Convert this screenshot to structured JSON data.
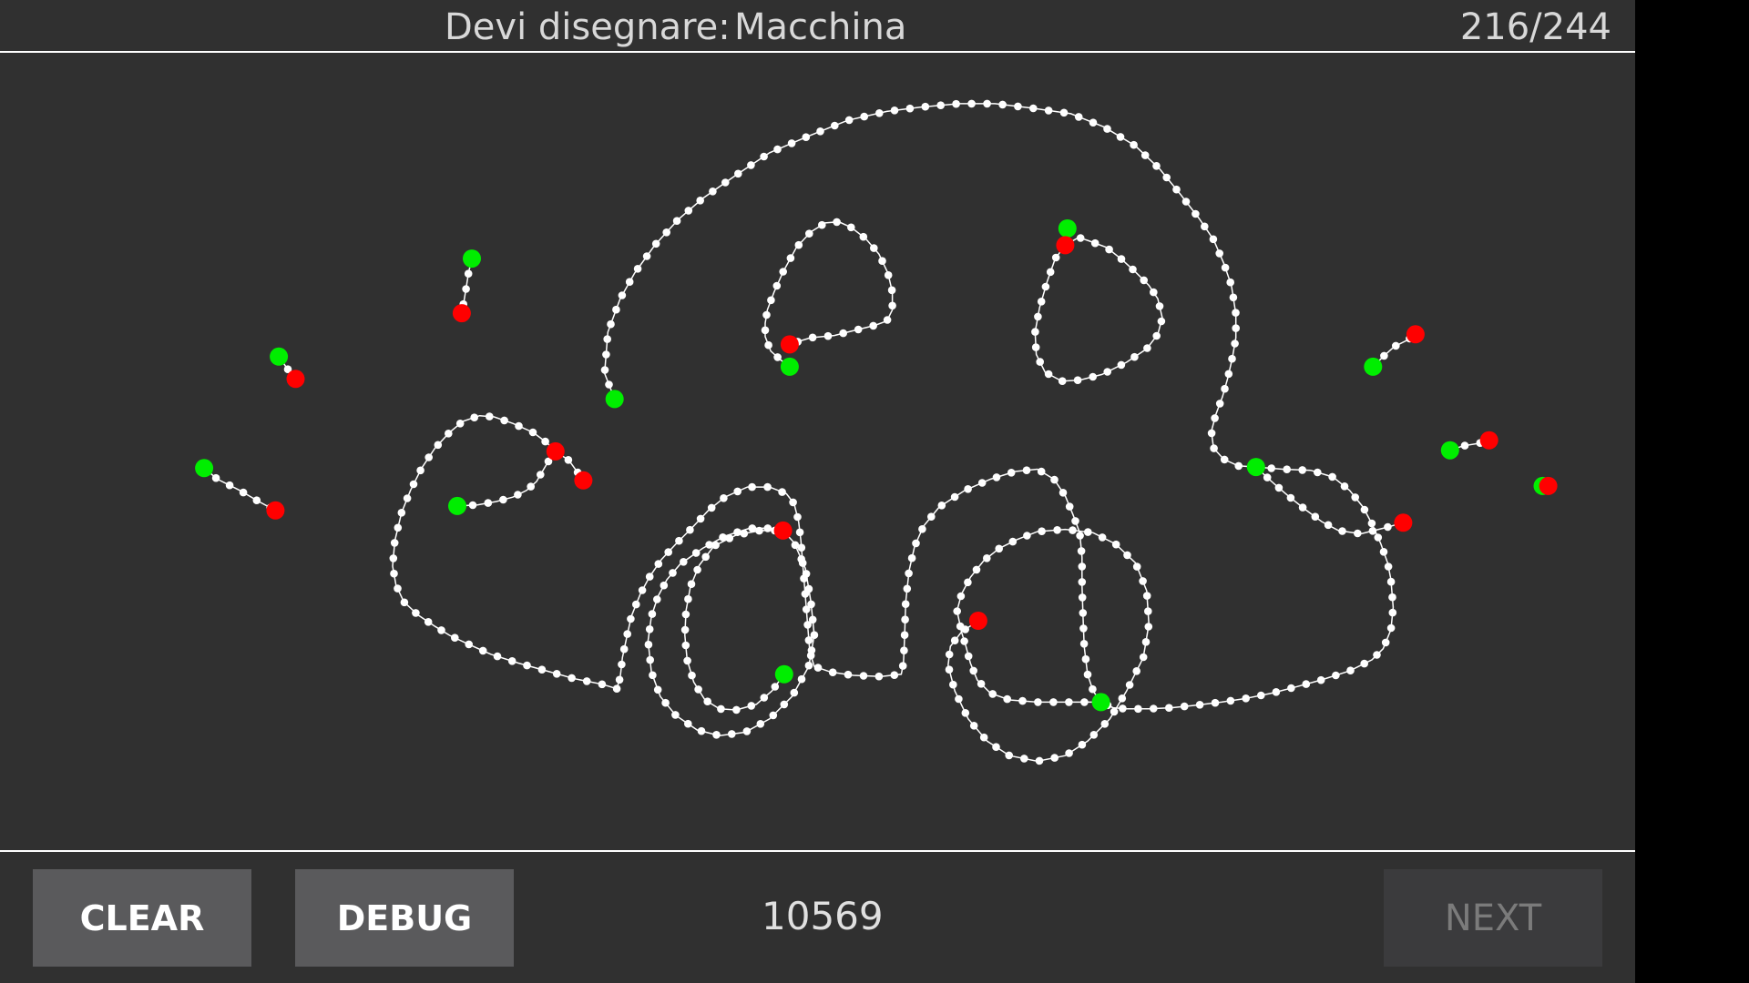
{
  "header": {
    "prompt_label": "Devi disegnare:",
    "target_word": "Macchina",
    "progress": "216/244"
  },
  "toolbar": {
    "clear_label": "CLEAR",
    "debug_label": "DEBUG",
    "score": "10569",
    "next_label": "NEXT"
  },
  "colors": {
    "background": "#303030",
    "stroke": "#ffffff",
    "start_point": "#00ee00",
    "end_point": "#ff0000"
  }
}
